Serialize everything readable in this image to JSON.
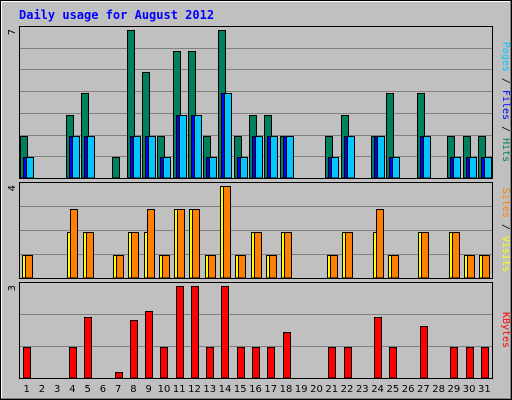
{
  "chart_data": {
    "type": "bar",
    "title": "Daily usage for August 2012",
    "days": [
      "1",
      "2",
      "3",
      "4",
      "5",
      "6",
      "7",
      "8",
      "9",
      "10",
      "11",
      "12",
      "13",
      "14",
      "15",
      "16",
      "17",
      "18",
      "19",
      "20",
      "21",
      "22",
      "23",
      "24",
      "25",
      "26",
      "27",
      "28",
      "29",
      "30",
      "31"
    ],
    "weekend_days": [
      "4",
      "5",
      "11",
      "12",
      "18",
      "19",
      "25",
      "26"
    ],
    "panels": [
      {
        "id": "hits-files-pages",
        "ymax_label": "7",
        "ymax": 7,
        "right_labels": [
          "Pages",
          "Files",
          "Hits"
        ],
        "series": [
          {
            "name": "Hits",
            "color": "#00805c",
            "values": [
              2,
              0,
              0,
              3,
              4,
              0,
              1,
              7,
              5,
              2,
              6,
              6,
              2,
              7,
              2,
              3,
              3,
              2,
              0,
              0,
              2,
              3,
              0,
              2,
              4,
              0,
              4,
              0,
              2,
              2,
              2
            ]
          },
          {
            "name": "Files",
            "color": "#0000ff",
            "values": [
              1,
              0,
              0,
              2,
              2,
              0,
              0,
              2,
              2,
              1,
              3,
              3,
              1,
              4,
              1,
              2,
              2,
              2,
              0,
              0,
              1,
              2,
              0,
              2,
              1,
              0,
              2,
              0,
              1,
              1,
              1
            ]
          },
          {
            "name": "Pages",
            "color": "#00c8ff",
            "values": [
              1,
              0,
              0,
              2,
              2,
              0,
              0,
              2,
              2,
              1,
              3,
              3,
              1,
              4,
              1,
              2,
              2,
              2,
              0,
              0,
              1,
              2,
              0,
              2,
              1,
              0,
              2,
              0,
              1,
              1,
              1
            ]
          }
        ]
      },
      {
        "id": "visits-sites",
        "ymax_label": "4",
        "ymax": 4,
        "right_labels": [
          "Sites",
          "Visits"
        ],
        "series": [
          {
            "name": "Visits",
            "color": "#ffff00",
            "values": [
              1,
              0,
              0,
              2,
              2,
              0,
              1,
              2,
              2,
              1,
              3,
              3,
              1,
              4,
              1,
              2,
              1,
              2,
              0,
              0,
              1,
              2,
              0,
              2,
              1,
              0,
              2,
              0,
              2,
              1,
              1
            ]
          },
          {
            "name": "Sites",
            "color": "#ff8000",
            "values": [
              1,
              0,
              0,
              3,
              2,
              0,
              1,
              2,
              3,
              1,
              3,
              3,
              1,
              4,
              1,
              2,
              1,
              2,
              0,
              0,
              1,
              2,
              0,
              3,
              1,
              0,
              2,
              0,
              2,
              1,
              1
            ]
          }
        ]
      },
      {
        "id": "kbytes",
        "ymax_label": "3",
        "ymax": 3,
        "right_labels": [
          "KBytes"
        ],
        "series": [
          {
            "name": "KBytes",
            "color": "#ff0000",
            "values": [
              1,
              0,
              0,
              1,
              2,
              0,
              0.2,
              1.9,
              2.2,
              1,
              3,
              3,
              1,
              3,
              1,
              1,
              1,
              1.5,
              0,
              0,
              1,
              1,
              0,
              2,
              1,
              0,
              1.7,
              0,
              1,
              1,
              1
            ]
          }
        ]
      }
    ],
    "colors": {
      "background": "#c0c0c0",
      "title": "#0000ff",
      "weekend_label": "#00805c",
      "gridline": "#808080",
      "bar_outline": "#000000"
    }
  }
}
